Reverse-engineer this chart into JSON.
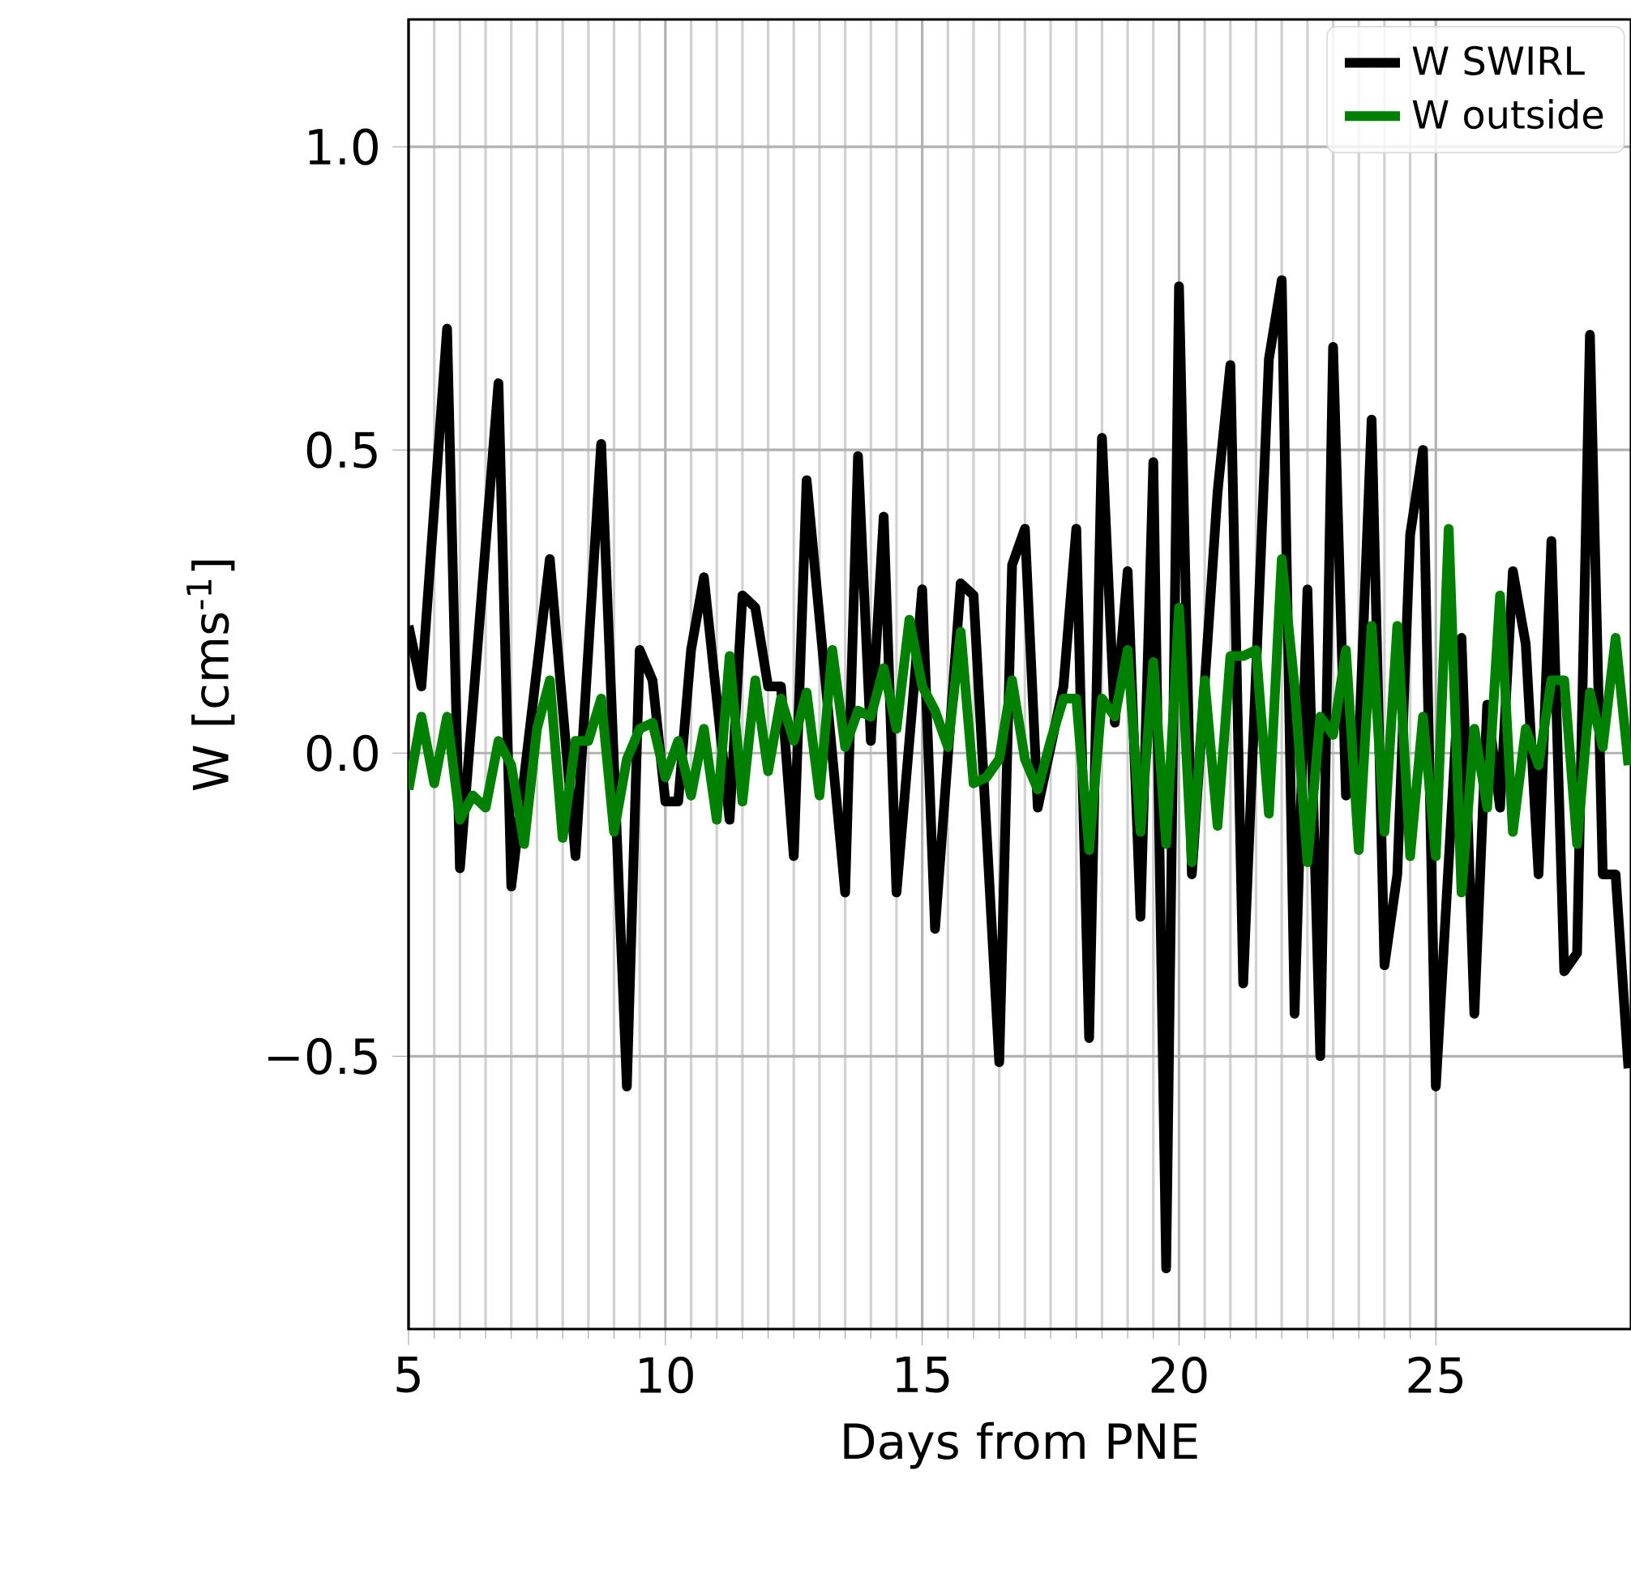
{
  "chart_data": {
    "type": "line",
    "xlabel": "Days from PNE",
    "ylabel": "W [cms$^{-1}$]",
    "xlim": [
      5,
      28.8
    ],
    "ylim": [
      -0.95,
      1.21
    ],
    "xticks": [
      5,
      10,
      15,
      20,
      25
    ],
    "yticks": [
      {
        "value": -0.5,
        "label": "−0.5"
      },
      {
        "value": 0,
        "label": "0.0"
      },
      {
        "value": 0.5,
        "label": "0.5"
      },
      {
        "value": 1.0,
        "label": "1.0"
      }
    ],
    "grid": true,
    "legend": "top right",
    "line_style": "solid",
    "series": [
      {
        "name": "W SWIRL",
        "color": "#000000",
        "x": [
          5.0,
          5.25,
          5.75,
          6.0,
          6.75,
          7.0,
          7.75,
          8.25,
          8.75,
          9.25,
          9.5,
          9.75,
          10.0,
          10.25,
          10.5,
          10.75,
          11.25,
          11.5,
          11.75,
          12.0,
          12.25,
          12.5,
          12.75,
          13.5,
          13.75,
          14.0,
          14.25,
          14.5,
          15.0,
          15.25,
          15.75,
          16.0,
          16.5,
          16.75,
          17.0,
          17.25,
          17.75,
          18.0,
          18.25,
          18.5,
          18.75,
          19.0,
          19.25,
          19.5,
          19.75,
          20.0,
          20.25,
          20.75,
          21.0,
          21.25,
          21.75,
          22.0,
          22.25,
          22.5,
          22.75,
          23.0,
          23.25,
          23.5,
          23.75,
          24.0,
          24.25,
          24.5,
          24.75,
          25.0,
          25.5,
          25.75,
          26.0,
          26.25,
          26.5,
          26.75,
          27.0,
          27.25,
          27.5,
          27.75,
          28.0,
          28.25,
          28.5,
          28.75
        ],
        "values": [
          0.21,
          0.11,
          0.7,
          -0.19,
          0.61,
          -0.22,
          0.32,
          -0.17,
          0.51,
          -0.55,
          0.17,
          0.12,
          -0.08,
          -0.08,
          0.17,
          0.29,
          -0.11,
          0.26,
          0.24,
          0.11,
          0.11,
          -0.17,
          0.45,
          -0.23,
          0.49,
          0.02,
          0.39,
          -0.23,
          0.27,
          -0.29,
          0.28,
          0.26,
          -0.51,
          0.31,
          0.37,
          -0.09,
          0.11,
          0.37,
          -0.47,
          0.52,
          0.05,
          0.3,
          -0.27,
          0.48,
          -0.85,
          0.77,
          -0.2,
          0.43,
          0.64,
          -0.38,
          0.65,
          0.78,
          -0.43,
          0.27,
          -0.5,
          0.67,
          -0.07,
          0.01,
          0.55,
          -0.35,
          -0.2,
          0.36,
          0.5,
          -0.55,
          0.19,
          -0.43,
          0.08,
          -0.09,
          0.3,
          0.18,
          -0.2,
          0.35,
          -0.36,
          -0.33,
          0.69,
          -0.2,
          -0.2,
          -0.52
        ]
      },
      {
        "name": "W outside",
        "color": "#008000",
        "x": [
          5.0,
          5.25,
          5.5,
          5.75,
          6.0,
          6.25,
          6.5,
          6.75,
          7.0,
          7.25,
          7.5,
          7.75,
          8.0,
          8.25,
          8.5,
          8.75,
          9.0,
          9.25,
          9.5,
          9.75,
          10.0,
          10.25,
          10.5,
          10.75,
          11.0,
          11.25,
          11.5,
          11.75,
          12.0,
          12.25,
          12.5,
          12.75,
          13.0,
          13.25,
          13.5,
          13.75,
          14.0,
          14.25,
          14.5,
          14.75,
          15.0,
          15.25,
          15.5,
          15.75,
          16.0,
          16.25,
          16.5,
          16.75,
          17.0,
          17.25,
          17.5,
          17.75,
          18.0,
          18.25,
          18.5,
          18.75,
          19.0,
          19.25,
          19.5,
          19.75,
          20.0,
          20.25,
          20.5,
          20.75,
          21.0,
          21.25,
          21.5,
          21.75,
          22.0,
          22.25,
          22.5,
          22.75,
          23.0,
          23.25,
          23.5,
          23.75,
          24.0,
          24.25,
          24.5,
          24.75,
          25.0,
          25.25,
          25.5,
          25.75,
          26.0,
          26.25,
          26.5,
          26.75,
          27.0,
          27.25,
          27.5,
          27.75,
          28.0,
          28.25,
          28.5,
          28.75
        ],
        "values": [
          -0.06,
          0.06,
          -0.05,
          0.06,
          -0.11,
          -0.07,
          -0.09,
          0.02,
          -0.02,
          -0.15,
          0.04,
          0.12,
          -0.14,
          0.02,
          0.02,
          0.09,
          -0.13,
          -0.01,
          0.04,
          0.05,
          -0.04,
          0.02,
          -0.07,
          0.04,
          -0.11,
          0.16,
          -0.08,
          0.12,
          -0.03,
          0.09,
          0.02,
          0.1,
          -0.07,
          0.17,
          0.01,
          0.07,
          0.06,
          0.14,
          0.04,
          0.22,
          0.11,
          0.07,
          0.01,
          0.2,
          -0.05,
          -0.04,
          -0.01,
          0.12,
          -0.01,
          -0.06,
          0.02,
          0.09,
          0.09,
          -0.16,
          0.09,
          0.06,
          0.17,
          -0.13,
          0.15,
          -0.15,
          0.24,
          -0.18,
          0.12,
          -0.12,
          0.16,
          0.16,
          0.17,
          -0.1,
          0.32,
          0.11,
          -0.18,
          0.06,
          0.03,
          0.17,
          -0.16,
          0.21,
          -0.13,
          0.21,
          -0.17,
          0.06,
          -0.17,
          0.37,
          -0.23,
          0.04,
          -0.09,
          0.26,
          -0.13,
          0.04,
          -0.02,
          0.12,
          0.12,
          -0.15,
          0.1,
          0.01,
          0.19,
          -0.02
        ]
      }
    ]
  }
}
